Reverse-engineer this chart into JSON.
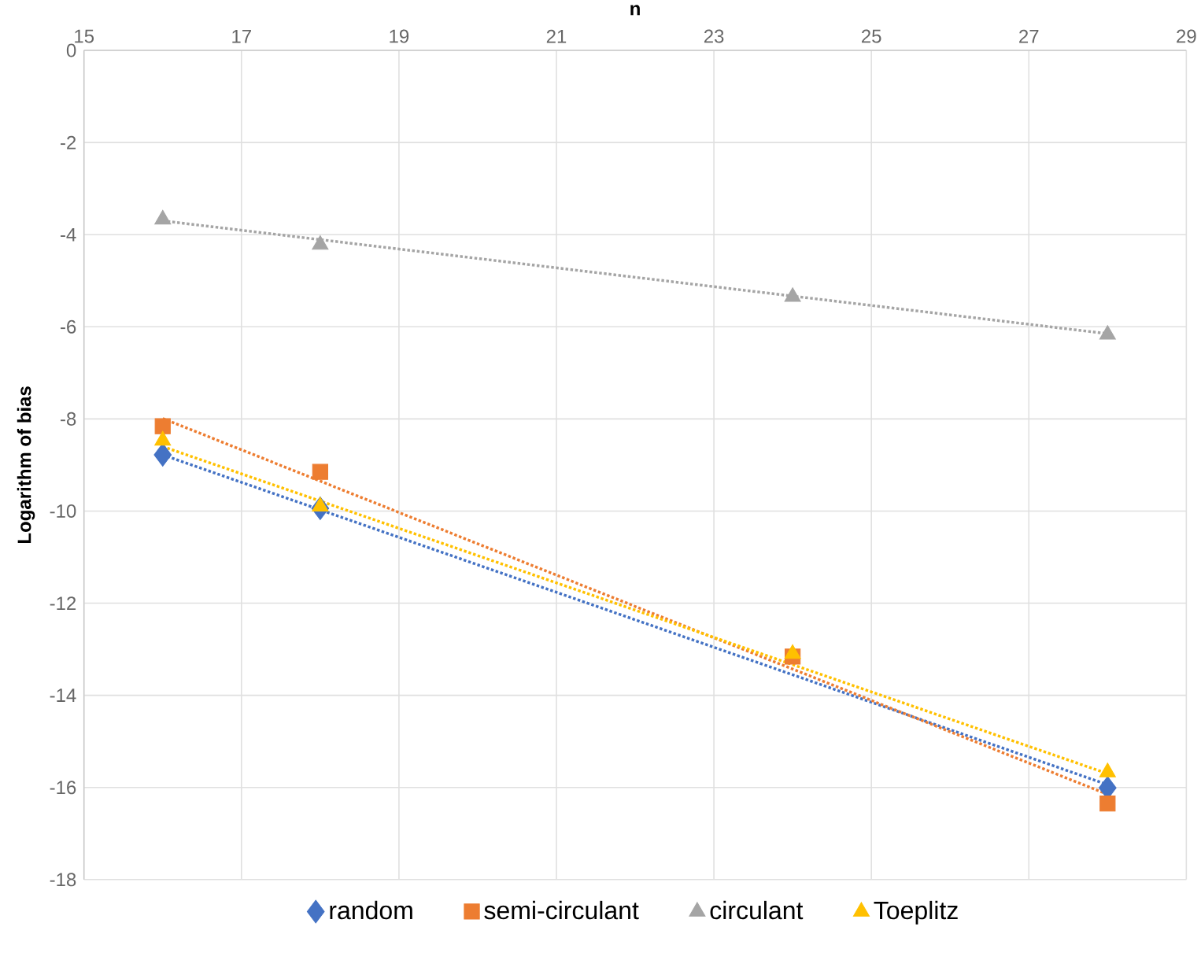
{
  "chart_data": {
    "type": "scatter",
    "xlabel": "n",
    "ylabel": "Logarithm of bias",
    "xlim": [
      15,
      29
    ],
    "xticks": [
      15,
      17,
      19,
      21,
      23,
      25,
      27,
      29
    ],
    "ylim": [
      -18,
      0
    ],
    "yticks": [
      -18,
      -16,
      -14,
      -12,
      -10,
      -8,
      -6,
      -4,
      -2,
      0
    ],
    "grid": true,
    "legend": "bottom",
    "series": [
      {
        "name": "random",
        "color": "#4472c4",
        "marker": "diamond",
        "x": [
          16,
          18,
          24,
          28
        ],
        "values": [
          -8.78,
          -9.94,
          null,
          -16.01
        ]
      },
      {
        "name": "semi-circulant",
        "color": "#ed7d31",
        "marker": "square",
        "x": [
          16,
          18,
          24,
          28
        ],
        "values": [
          -8.16,
          -9.15,
          -13.16,
          -16.35
        ]
      },
      {
        "name": "circulant",
        "color": "#a5a5a5",
        "marker": "triangle",
        "x": [
          16,
          18,
          24,
          28
        ],
        "values": [
          -3.67,
          -4.22,
          -5.35,
          -6.17
        ]
      },
      {
        "name": "Toeplitz",
        "color": "#ffc000",
        "marker": "triangle",
        "x": [
          16,
          18,
          24,
          28
        ],
        "values": [
          -8.47,
          -9.9,
          -13.1,
          -15.67
        ]
      },
      {
        "type": "line",
        "color": "#4472c4",
        "line_style": "dotted",
        "marker": "none",
        "x": [
          16,
          28
        ],
        "values": [
          -8.78,
          -15.94
        ]
      },
      {
        "type": "line",
        "color": "#ed7d31",
        "line_style": "dotted",
        "marker": "none",
        "x": [
          16,
          28
        ],
        "values": [
          -7.99,
          -16.15
        ]
      },
      {
        "type": "line",
        "color": "#a5a5a5",
        "line_style": "dotted",
        "marker": "none",
        "x": [
          16,
          28
        ],
        "values": [
          -3.7,
          -6.15
        ]
      },
      {
        "type": "line",
        "color": "#ffc000",
        "line_style": "dotted",
        "marker": "none",
        "x": [
          16,
          28
        ],
        "values": [
          -8.6,
          -15.7
        ]
      }
    ]
  }
}
